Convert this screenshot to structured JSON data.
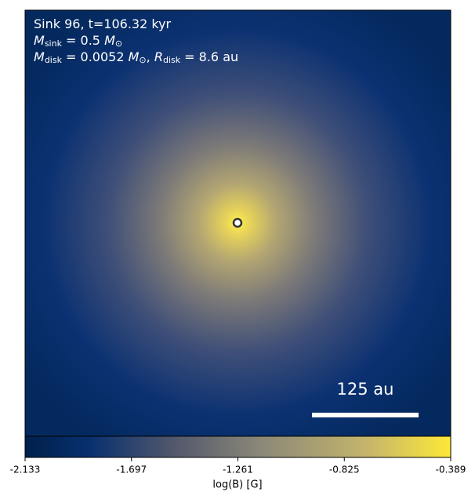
{
  "chart_data": {
    "type": "image",
    "annotations": [
      [
        {
          "text": "Sink 96, t=106.32 kyr"
        }
      ],
      [
        {
          "text": "M",
          "italic": true
        },
        {
          "text": "sink",
          "sub": true
        },
        {
          "text": " = 0.5 "
        },
        {
          "text": "M",
          "italic": true
        },
        {
          "text": "⊙",
          "sub": true
        }
      ],
      [
        {
          "text": "M",
          "italic": true
        },
        {
          "text": "disk",
          "sub": true
        },
        {
          "text": " = 0.0052 "
        },
        {
          "text": "M",
          "italic": true
        },
        {
          "text": "⊙",
          "sub": true
        },
        {
          "text": ", "
        },
        {
          "text": "R",
          "italic": true
        },
        {
          "text": "disk",
          "sub": true
        },
        {
          "text": " = 8.6 au"
        }
      ]
    ],
    "scale_bar": "125 au",
    "colorbar": {
      "label": "log(B) [G]",
      "lim": [
        -2.133,
        -0.389
      ],
      "ticks": [
        -2.133,
        -1.697,
        -1.261,
        -0.825,
        -0.389
      ]
    }
  }
}
